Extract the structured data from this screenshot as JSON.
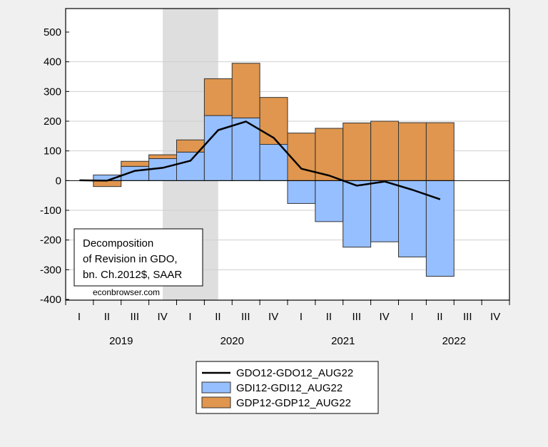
{
  "chart_data": {
    "type": "bar",
    "title": "",
    "xlabel": "",
    "ylabel": "",
    "ylim": [
      -400,
      500
    ],
    "yticks": [
      500,
      400,
      300,
      200,
      100,
      0,
      -100,
      -200,
      -300,
      -400
    ],
    "grid": true,
    "quarters": [
      "I",
      "II",
      "III",
      "IV",
      "I",
      "II",
      "III",
      "IV",
      "I",
      "II",
      "III",
      "IV",
      "I",
      "II",
      "III",
      "IV"
    ],
    "years": [
      "2019",
      "2020",
      "2021",
      "2022"
    ],
    "recession_shading": {
      "from": "2019Q4",
      "to": "2020Q2",
      "color": "#dedede"
    },
    "x": [
      "2019Q1",
      "2019Q2",
      "2019Q3",
      "2019Q4",
      "2020Q1",
      "2020Q2",
      "2020Q3",
      "2020Q4",
      "2021Q1",
      "2021Q2",
      "2021Q3",
      "2021Q4",
      "2022Q1",
      "2022Q2",
      "2022Q3",
      "2022Q4"
    ],
    "series": [
      {
        "name": "GDO12-GDO12_AUG22",
        "kind": "line",
        "color": "#000000",
        "values": [
          1,
          0,
          33,
          43,
          67,
          170,
          199,
          144,
          40,
          17,
          -17,
          -3,
          -31,
          -63,
          null,
          null
        ]
      },
      {
        "name": "GDI12-GDI12_AUG22",
        "kind": "stacked-bar",
        "color": "#96bfff",
        "values": [
          null,
          19,
          48,
          74,
          96,
          219,
          211,
          122,
          -77,
          -138,
          -224,
          -206,
          -257,
          -322,
          null,
          null
        ]
      },
      {
        "name": "GDP12-GDP12_AUG22",
        "kind": "stacked-bar",
        "color": "#e0964e",
        "values": [
          null,
          -20,
          17,
          13,
          41,
          124,
          184,
          158,
          160,
          176,
          194,
          200,
          195,
          195,
          null,
          null
        ]
      }
    ],
    "annotation": [
      "Decomposition",
      "of Revision in GDO,",
      "bn. Ch.2012$, SAAR"
    ],
    "source": "econbrowser.com",
    "legend_position": "bottom-center"
  }
}
